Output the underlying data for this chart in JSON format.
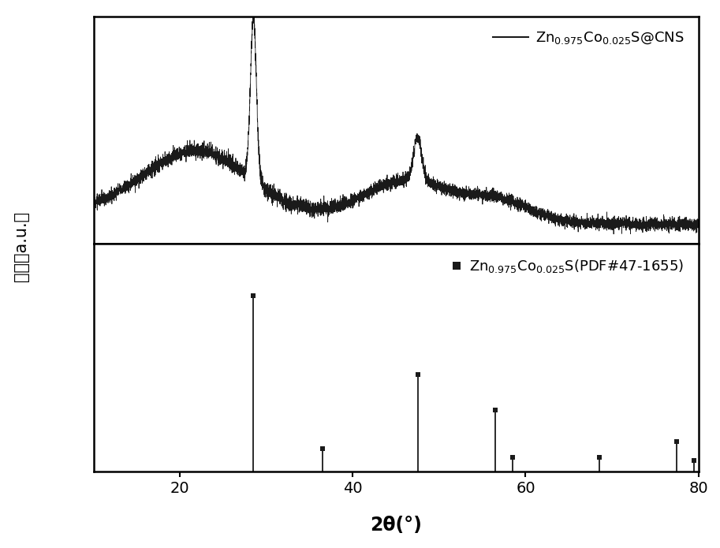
{
  "xmin": 10,
  "xmax": 80,
  "xticks": [
    20,
    40,
    60,
    80
  ],
  "xlabel": "2θ(°)",
  "ylabel": "强度（a.u.）",
  "line_color": "#1a1a1a",
  "background_color": "#ffffff",
  "pdf_peaks_x": [
    28.5,
    36.5,
    47.5,
    56.5,
    58.5,
    68.5,
    77.5,
    79.5
  ],
  "pdf_peaks_y": [
    1.0,
    0.13,
    0.55,
    0.35,
    0.08,
    0.08,
    0.17,
    0.06
  ],
  "legend1_label": "Zn$_{0.975}$Co$_{0.025}$S@CNS",
  "legend2_label": "Zn$_{0.975}$Co$_{0.025}$S(PDF#47-1655)"
}
